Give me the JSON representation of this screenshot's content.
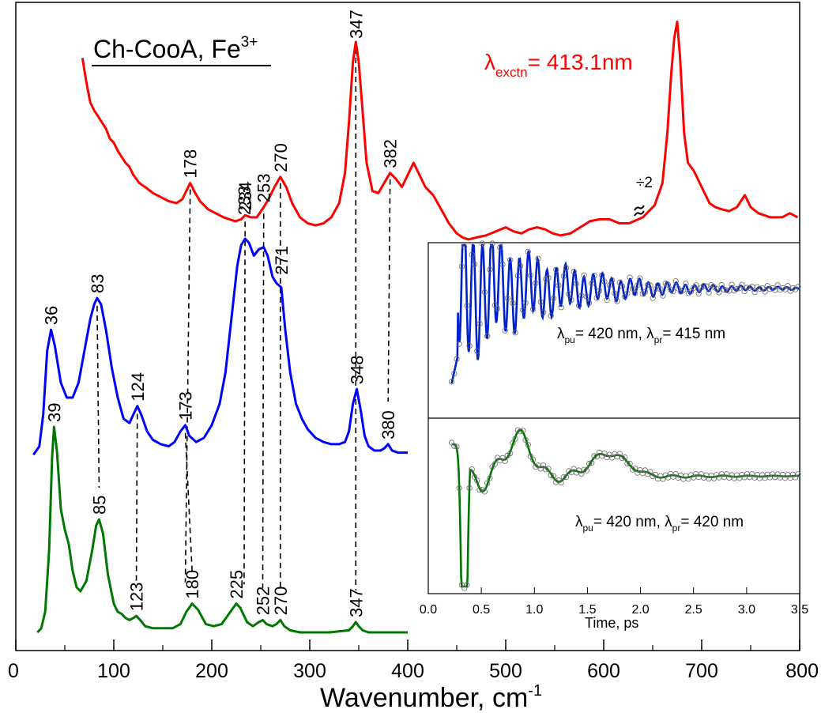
{
  "chart_data": {
    "type": "line",
    "title": "Ch-CooA, Fe",
    "title_superscript": "3+",
    "xlabel": "Wavenumber, cm",
    "xlabel_superscript": "-1",
    "xlim": [
      0,
      800
    ],
    "x_ticks": [
      "0",
      "100",
      "200",
      "300",
      "400",
      "500",
      "600",
      "700",
      "800"
    ],
    "grid": false,
    "excitation_label": {
      "symbol": "λ",
      "sub": "exctn",
      "text": "= 413.1nm",
      "color": "#ff0000"
    },
    "break_marker": {
      "text": "÷2",
      "x": 628
    },
    "series": [
      {
        "color": "#ff0000",
        "points": [
          [
            68,
            0.92
          ],
          [
            72,
            0.8
          ],
          [
            76,
            0.7
          ],
          [
            80,
            0.66
          ],
          [
            84,
            0.63
          ],
          [
            88,
            0.6
          ],
          [
            92,
            0.57
          ],
          [
            96,
            0.52
          ],
          [
            100,
            0.5
          ],
          [
            104,
            0.46
          ],
          [
            108,
            0.43
          ],
          [
            112,
            0.4
          ],
          [
            116,
            0.38
          ],
          [
            120,
            0.34
          ],
          [
            126,
            0.3
          ],
          [
            132,
            0.28
          ],
          [
            140,
            0.25
          ],
          [
            148,
            0.23
          ],
          [
            156,
            0.21
          ],
          [
            164,
            0.2
          ],
          [
            170,
            0.22
          ],
          [
            175,
            0.27
          ],
          [
            178,
            0.3
          ],
          [
            182,
            0.26
          ],
          [
            188,
            0.21
          ],
          [
            196,
            0.17
          ],
          [
            204,
            0.15
          ],
          [
            212,
            0.13
          ],
          [
            218,
            0.12
          ],
          [
            224,
            0.11
          ],
          [
            230,
            0.12
          ],
          [
            234,
            0.14
          ],
          [
            240,
            0.13
          ],
          [
            246,
            0.13
          ],
          [
            253,
            0.18
          ],
          [
            258,
            0.22
          ],
          [
            264,
            0.28
          ],
          [
            270,
            0.33
          ],
          [
            276,
            0.28
          ],
          [
            282,
            0.2
          ],
          [
            290,
            0.13
          ],
          [
            298,
            0.1
          ],
          [
            306,
            0.09
          ],
          [
            314,
            0.1
          ],
          [
            322,
            0.13
          ],
          [
            330,
            0.2
          ],
          [
            336,
            0.35
          ],
          [
            340,
            0.6
          ],
          [
            344,
            0.9
          ],
          [
            347,
            1.0
          ],
          [
            350,
            0.9
          ],
          [
            354,
            0.65
          ],
          [
            358,
            0.4
          ],
          [
            364,
            0.26
          ],
          [
            370,
            0.25
          ],
          [
            376,
            0.3
          ],
          [
            382,
            0.35
          ],
          [
            388,
            0.32
          ],
          [
            394,
            0.28
          ],
          [
            400,
            0.34
          ],
          [
            406,
            0.4
          ],
          [
            412,
            0.34
          ],
          [
            418,
            0.28
          ],
          [
            426,
            0.24
          ],
          [
            434,
            0.17
          ],
          [
            442,
            0.1
          ],
          [
            450,
            0.05
          ],
          [
            456,
            0.03
          ],
          [
            462,
            0.02
          ],
          [
            470,
            0.03
          ],
          [
            480,
            0.04
          ],
          [
            490,
            0.06
          ],
          [
            500,
            0.08
          ],
          [
            508,
            0.06
          ],
          [
            516,
            0.05
          ],
          [
            524,
            0.07
          ],
          [
            532,
            0.08
          ],
          [
            540,
            0.07
          ],
          [
            548,
            0.05
          ],
          [
            556,
            0.04
          ],
          [
            566,
            0.05
          ],
          [
            576,
            0.08
          ],
          [
            586,
            0.11
          ],
          [
            596,
            0.12
          ],
          [
            606,
            0.12
          ],
          [
            616,
            0.1
          ],
          [
            626,
            0.1
          ],
          [
            640,
            0.13
          ],
          [
            652,
            0.19
          ],
          [
            660,
            0.3
          ],
          [
            665,
            0.55
          ],
          [
            669,
            0.85
          ],
          [
            672,
            1.02
          ],
          [
            675,
            1.1
          ],
          [
            678,
            0.92
          ],
          [
            682,
            0.55
          ],
          [
            686,
            0.4
          ],
          [
            692,
            0.36
          ],
          [
            700,
            0.28
          ],
          [
            708,
            0.2
          ],
          [
            714,
            0.18
          ],
          [
            720,
            0.17
          ],
          [
            728,
            0.16
          ],
          [
            736,
            0.18
          ],
          [
            744,
            0.24
          ],
          [
            750,
            0.18
          ],
          [
            758,
            0.15
          ],
          [
            770,
            0.13
          ],
          [
            782,
            0.13
          ],
          [
            790,
            0.15
          ],
          [
            798,
            0.13
          ]
        ]
      },
      {
        "color": "#0000ff",
        "points": [
          [
            18,
            0.01
          ],
          [
            24,
            0.05
          ],
          [
            28,
            0.2
          ],
          [
            32,
            0.5
          ],
          [
            36,
            0.6
          ],
          [
            40,
            0.52
          ],
          [
            46,
            0.35
          ],
          [
            52,
            0.28
          ],
          [
            58,
            0.28
          ],
          [
            64,
            0.35
          ],
          [
            70,
            0.5
          ],
          [
            76,
            0.65
          ],
          [
            80,
            0.72
          ],
          [
            83,
            0.75
          ],
          [
            87,
            0.72
          ],
          [
            92,
            0.6
          ],
          [
            98,
            0.42
          ],
          [
            104,
            0.28
          ],
          [
            110,
            0.18
          ],
          [
            116,
            0.16
          ],
          [
            120,
            0.2
          ],
          [
            124,
            0.24
          ],
          [
            128,
            0.2
          ],
          [
            134,
            0.12
          ],
          [
            140,
            0.08
          ],
          [
            148,
            0.06
          ],
          [
            156,
            0.05
          ],
          [
            162,
            0.07
          ],
          [
            168,
            0.12
          ],
          [
            173,
            0.15
          ],
          [
            177,
            0.1
          ],
          [
            184,
            0.07
          ],
          [
            192,
            0.09
          ],
          [
            200,
            0.15
          ],
          [
            208,
            0.25
          ],
          [
            214,
            0.4
          ],
          [
            220,
            0.65
          ],
          [
            226,
            0.9
          ],
          [
            230,
            1.0
          ],
          [
            234,
            1.03
          ],
          [
            238,
            1.01
          ],
          [
            243,
            0.95
          ],
          [
            248,
            0.98
          ],
          [
            253,
            0.99
          ],
          [
            257,
            0.95
          ],
          [
            262,
            0.85
          ],
          [
            266,
            0.82
          ],
          [
            271,
            0.8
          ],
          [
            275,
            0.6
          ],
          [
            280,
            0.4
          ],
          [
            286,
            0.25
          ],
          [
            292,
            0.18
          ],
          [
            298,
            0.13
          ],
          [
            306,
            0.09
          ],
          [
            314,
            0.07
          ],
          [
            322,
            0.06
          ],
          [
            330,
            0.06
          ],
          [
            336,
            0.07
          ],
          [
            340,
            0.12
          ],
          [
            344,
            0.25
          ],
          [
            348,
            0.32
          ],
          [
            352,
            0.22
          ],
          [
            356,
            0.1
          ],
          [
            360,
            0.05
          ],
          [
            366,
            0.03
          ],
          [
            372,
            0.03
          ],
          [
            376,
            0.04
          ],
          [
            380,
            0.06
          ],
          [
            384,
            0.03
          ],
          [
            390,
            0.02
          ],
          [
            400,
            0.02
          ]
        ]
      },
      {
        "color": "#007700",
        "points": [
          [
            22,
            0.0
          ],
          [
            26,
            0.02
          ],
          [
            30,
            0.1
          ],
          [
            34,
            0.4
          ],
          [
            37,
            0.85
          ],
          [
            39,
            1.0
          ],
          [
            42,
            0.88
          ],
          [
            46,
            0.6
          ],
          [
            50,
            0.5
          ],
          [
            54,
            0.43
          ],
          [
            58,
            0.3
          ],
          [
            62,
            0.22
          ],
          [
            66,
            0.2
          ],
          [
            72,
            0.25
          ],
          [
            78,
            0.4
          ],
          [
            82,
            0.52
          ],
          [
            85,
            0.55
          ],
          [
            89,
            0.48
          ],
          [
            94,
            0.28
          ],
          [
            100,
            0.14
          ],
          [
            104,
            0.1
          ],
          [
            108,
            0.09
          ],
          [
            112,
            0.07
          ],
          [
            116,
            0.06
          ],
          [
            120,
            0.07
          ],
          [
            123,
            0.08
          ],
          [
            127,
            0.06
          ],
          [
            132,
            0.03
          ],
          [
            140,
            0.02
          ],
          [
            150,
            0.02
          ],
          [
            160,
            0.02
          ],
          [
            168,
            0.04
          ],
          [
            174,
            0.1
          ],
          [
            180,
            0.14
          ],
          [
            186,
            0.11
          ],
          [
            194,
            0.04
          ],
          [
            202,
            0.03
          ],
          [
            210,
            0.04
          ],
          [
            216,
            0.08
          ],
          [
            222,
            0.12
          ],
          [
            225,
            0.14
          ],
          [
            229,
            0.12
          ],
          [
            236,
            0.05
          ],
          [
            242,
            0.03
          ],
          [
            248,
            0.05
          ],
          [
            252,
            0.06
          ],
          [
            256,
            0.04
          ],
          [
            262,
            0.03
          ],
          [
            266,
            0.04
          ],
          [
            270,
            0.06
          ],
          [
            274,
            0.03
          ],
          [
            280,
            0.01
          ],
          [
            290,
            0.0
          ],
          [
            300,
            0.0
          ],
          [
            320,
            0.0
          ],
          [
            340,
            0.01
          ],
          [
            344,
            0.03
          ],
          [
            347,
            0.05
          ],
          [
            350,
            0.03
          ],
          [
            354,
            0.01
          ],
          [
            360,
            0.0
          ],
          [
            380,
            0.0
          ],
          [
            400,
            0.0
          ]
        ]
      }
    ],
    "peak_labels": [
      {
        "text": "347",
        "x": 347,
        "series": 0
      },
      {
        "text": "178",
        "x": 178,
        "series": 0
      },
      {
        "text": "234",
        "x": 234,
        "series": 0
      },
      {
        "text": "253",
        "x": 253,
        "series": 0
      },
      {
        "text": "270",
        "x": 270,
        "series": 0
      },
      {
        "text": "382",
        "x": 382,
        "series": 0
      },
      {
        "text": "36",
        "x": 36,
        "series": 1
      },
      {
        "text": "83",
        "x": 83,
        "series": 1
      },
      {
        "text": "124",
        "x": 124,
        "series": 1
      },
      {
        "text": "173",
        "x": 173,
        "series": 1
      },
      {
        "text": "233",
        "x": 233,
        "series": 1
      },
      {
        "text": "271",
        "x": 271,
        "series": 1
      },
      {
        "text": "348",
        "x": 348,
        "series": 1
      },
      {
        "text": "380",
        "x": 380,
        "series": 1
      },
      {
        "text": "39",
        "x": 39,
        "series": 2
      },
      {
        "text": "85",
        "x": 85,
        "series": 2
      },
      {
        "text": "123",
        "x": 123,
        "series": 2
      },
      {
        "text": "180",
        "x": 180,
        "series": 2
      },
      {
        "text": "225",
        "x": 225,
        "series": 2
      },
      {
        "text": "252",
        "x": 252,
        "series": 2
      },
      {
        "text": "270",
        "x": 270,
        "series": 2
      },
      {
        "text": "347",
        "x": 347,
        "series": 2
      }
    ],
    "dashed_lines": [
      {
        "x_top": 178,
        "x_bottom": 173
      },
      {
        "x_top": 234,
        "x_bottom": 233
      },
      {
        "x_top": 253,
        "x_bottom": 252
      },
      {
        "x_top": 270,
        "x_bottom": 270
      },
      {
        "x_top": 347,
        "x_bottom": 347
      },
      {
        "x_top": 382,
        "x_bottom": 380
      },
      {
        "x_top": 83,
        "x_bottom": 85
      },
      {
        "x_top": 124,
        "x_bottom": 123
      },
      {
        "x_top": 173,
        "x_bottom": 180
      }
    ],
    "inset": {
      "xlabel": "Time, ps",
      "xlim": [
        0,
        3.5
      ],
      "x_ticks": [
        "0.0",
        "0.5",
        "1.0",
        "1.5",
        "2.0",
        "2.5",
        "3.0",
        "3.5"
      ],
      "panels": [
        {
          "color": "#0022cc",
          "label": {
            "pu": "pu",
            "pr": "pr",
            "pu_val": "= 420 nm,",
            "pr_val": "= 415 nm"
          }
        },
        {
          "color": "#007700",
          "label": {
            "pu": "pu",
            "pr": "pr",
            "pu_val": "= 420 nm,",
            "pr_val": "= 420 nm"
          }
        }
      ]
    }
  }
}
